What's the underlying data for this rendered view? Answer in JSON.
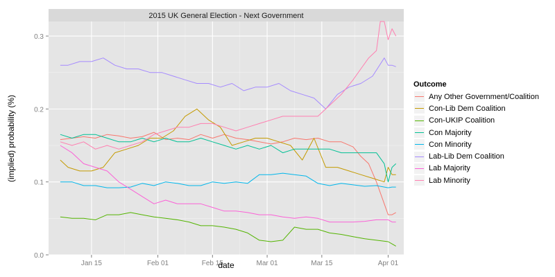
{
  "chart_data": {
    "type": "line",
    "title": "2015 UK General Election - Next Government",
    "xlabel": "date",
    "ylabel": "(implied) probability (%)",
    "legend_title": "Outcome",
    "legend_position": "right",
    "grid": true,
    "xlim": [
      "2015-01-04",
      "2015-04-05"
    ],
    "ylim": [
      0,
      0.32
    ],
    "x_ticks": [
      {
        "date": "2015-01-15",
        "label": "Jan 15"
      },
      {
        "date": "2015-02-01",
        "label": "Feb 01"
      },
      {
        "date": "2015-02-15",
        "label": "Feb 15"
      },
      {
        "date": "2015-03-01",
        "label": "Mar 01"
      },
      {
        "date": "2015-03-15",
        "label": "Mar 15"
      },
      {
        "date": "2015-04-01",
        "label": "Apr 01"
      }
    ],
    "y_ticks": [
      0.0,
      0.1,
      0.2,
      0.3
    ],
    "y_tick_labels": [
      "0.0",
      "0.1",
      "0.2",
      "0.3"
    ],
    "series": [
      {
        "name": "Any Other Government/Coalition",
        "color": "#F8766D",
        "x": [
          "2015-01-07",
          "2015-01-10",
          "2015-01-13",
          "2015-01-16",
          "2015-01-19",
          "2015-01-22",
          "2015-01-25",
          "2015-01-28",
          "2015-01-31",
          "2015-02-03",
          "2015-02-06",
          "2015-02-09",
          "2015-02-12",
          "2015-02-15",
          "2015-02-18",
          "2015-02-21",
          "2015-02-24",
          "2015-02-27",
          "2015-03-02",
          "2015-03-05",
          "2015-03-08",
          "2015-03-11",
          "2015-03-14",
          "2015-03-17",
          "2015-03-20",
          "2015-03-23",
          "2015-03-25",
          "2015-03-27",
          "2015-03-29",
          "2015-03-31",
          "2015-04-01",
          "2015-04-02",
          "2015-04-03"
        ],
        "y": [
          0.158,
          0.16,
          0.162,
          0.16,
          0.165,
          0.163,
          0.16,
          0.162,
          0.168,
          0.158,
          0.16,
          0.158,
          0.165,
          0.16,
          0.165,
          0.16,
          0.158,
          0.155,
          0.152,
          0.155,
          0.16,
          0.158,
          0.16,
          0.155,
          0.155,
          0.148,
          0.135,
          0.125,
          0.1,
          0.07,
          0.055,
          0.055,
          0.058
        ]
      },
      {
        "name": "Con-Lib Dem Coalition",
        "color": "#C49A00",
        "x": [
          "2015-01-07",
          "2015-01-09",
          "2015-01-12",
          "2015-01-15",
          "2015-01-18",
          "2015-01-21",
          "2015-01-24",
          "2015-01-27",
          "2015-01-30",
          "2015-02-02",
          "2015-02-05",
          "2015-02-08",
          "2015-02-11",
          "2015-02-14",
          "2015-02-17",
          "2015-02-20",
          "2015-02-23",
          "2015-02-26",
          "2015-03-01",
          "2015-03-04",
          "2015-03-07",
          "2015-03-10",
          "2015-03-13",
          "2015-03-16",
          "2015-03-19",
          "2015-03-22",
          "2015-03-25",
          "2015-03-28",
          "2015-03-31",
          "2015-04-01",
          "2015-04-02",
          "2015-04-03"
        ],
        "y": [
          0.13,
          0.12,
          0.115,
          0.115,
          0.12,
          0.14,
          0.145,
          0.15,
          0.16,
          0.16,
          0.17,
          0.19,
          0.2,
          0.185,
          0.175,
          0.15,
          0.155,
          0.16,
          0.16,
          0.155,
          0.15,
          0.13,
          0.16,
          0.12,
          0.12,
          0.115,
          0.11,
          0.105,
          0.1,
          0.12,
          0.11,
          0.11
        ]
      },
      {
        "name": "Con-UKIP Coalition",
        "color": "#53B400",
        "x": [
          "2015-01-07",
          "2015-01-10",
          "2015-01-13",
          "2015-01-16",
          "2015-01-19",
          "2015-01-22",
          "2015-01-25",
          "2015-01-28",
          "2015-01-31",
          "2015-02-03",
          "2015-02-06",
          "2015-02-09",
          "2015-02-12",
          "2015-02-15",
          "2015-02-18",
          "2015-02-21",
          "2015-02-24",
          "2015-02-27",
          "2015-03-02",
          "2015-03-05",
          "2015-03-08",
          "2015-03-11",
          "2015-03-14",
          "2015-03-17",
          "2015-03-20",
          "2015-03-23",
          "2015-03-26",
          "2015-03-29",
          "2015-04-01",
          "2015-04-02",
          "2015-04-03"
        ],
        "y": [
          0.052,
          0.05,
          0.05,
          0.048,
          0.055,
          0.055,
          0.058,
          0.055,
          0.052,
          0.05,
          0.048,
          0.045,
          0.04,
          0.04,
          0.038,
          0.035,
          0.03,
          0.02,
          0.018,
          0.02,
          0.038,
          0.035,
          0.035,
          0.03,
          0.028,
          0.025,
          0.022,
          0.02,
          0.018,
          0.015,
          0.012
        ]
      },
      {
        "name": "Con Majority",
        "color": "#00C094",
        "x": [
          "2015-01-07",
          "2015-01-10",
          "2015-01-13",
          "2015-01-16",
          "2015-01-19",
          "2015-01-22",
          "2015-01-25",
          "2015-01-28",
          "2015-01-31",
          "2015-02-03",
          "2015-02-06",
          "2015-02-09",
          "2015-02-12",
          "2015-02-15",
          "2015-02-18",
          "2015-02-21",
          "2015-02-24",
          "2015-02-27",
          "2015-03-02",
          "2015-03-05",
          "2015-03-08",
          "2015-03-11",
          "2015-03-14",
          "2015-03-17",
          "2015-03-20",
          "2015-03-23",
          "2015-03-26",
          "2015-03-29",
          "2015-03-31",
          "2015-04-01",
          "2015-04-02",
          "2015-04-03"
        ],
        "y": [
          0.165,
          0.16,
          0.165,
          0.165,
          0.16,
          0.155,
          0.155,
          0.16,
          0.155,
          0.16,
          0.155,
          0.155,
          0.16,
          0.155,
          0.15,
          0.145,
          0.15,
          0.145,
          0.15,
          0.14,
          0.145,
          0.145,
          0.145,
          0.145,
          0.14,
          0.14,
          0.14,
          0.14,
          0.125,
          0.1,
          0.12,
          0.125
        ]
      },
      {
        "name": "Con Minority",
        "color": "#00B6EB",
        "x": [
          "2015-01-07",
          "2015-01-10",
          "2015-01-13",
          "2015-01-16",
          "2015-01-19",
          "2015-01-22",
          "2015-01-25",
          "2015-01-28",
          "2015-01-31",
          "2015-02-03",
          "2015-02-06",
          "2015-02-09",
          "2015-02-12",
          "2015-02-15",
          "2015-02-18",
          "2015-02-21",
          "2015-02-24",
          "2015-02-27",
          "2015-03-02",
          "2015-03-05",
          "2015-03-08",
          "2015-03-11",
          "2015-03-14",
          "2015-03-17",
          "2015-03-20",
          "2015-03-23",
          "2015-03-26",
          "2015-03-29",
          "2015-04-01",
          "2015-04-02",
          "2015-04-03"
        ],
        "y": [
          0.1,
          0.1,
          0.095,
          0.095,
          0.092,
          0.092,
          0.093,
          0.098,
          0.095,
          0.1,
          0.098,
          0.095,
          0.095,
          0.1,
          0.098,
          0.1,
          0.098,
          0.11,
          0.11,
          0.112,
          0.11,
          0.108,
          0.098,
          0.095,
          0.098,
          0.096,
          0.094,
          0.095,
          0.092,
          0.093,
          0.093
        ]
      },
      {
        "name": "Lab-Lib Dem Coalition",
        "color": "#A58AFF",
        "x": [
          "2015-01-07",
          "2015-01-09",
          "2015-01-12",
          "2015-01-15",
          "2015-01-18",
          "2015-01-21",
          "2015-01-24",
          "2015-01-27",
          "2015-01-30",
          "2015-02-02",
          "2015-02-05",
          "2015-02-08",
          "2015-02-11",
          "2015-02-14",
          "2015-02-17",
          "2015-02-20",
          "2015-02-23",
          "2015-02-26",
          "2015-03-01",
          "2015-03-04",
          "2015-03-07",
          "2015-03-10",
          "2015-03-13",
          "2015-03-16",
          "2015-03-19",
          "2015-03-22",
          "2015-03-25",
          "2015-03-28",
          "2015-03-31",
          "2015-04-01",
          "2015-04-02",
          "2015-04-03"
        ],
        "y": [
          0.26,
          0.26,
          0.265,
          0.265,
          0.27,
          0.26,
          0.255,
          0.255,
          0.25,
          0.25,
          0.245,
          0.24,
          0.235,
          0.235,
          0.23,
          0.235,
          0.225,
          0.23,
          0.23,
          0.235,
          0.225,
          0.22,
          0.215,
          0.2,
          0.22,
          0.23,
          0.235,
          0.245,
          0.27,
          0.26,
          0.26,
          0.258
        ]
      },
      {
        "name": "Lab Majority",
        "color": "#FB61D7",
        "x": [
          "2015-01-07",
          "2015-01-10",
          "2015-01-13",
          "2015-01-16",
          "2015-01-19",
          "2015-01-22",
          "2015-01-25",
          "2015-01-28",
          "2015-01-31",
          "2015-02-03",
          "2015-02-06",
          "2015-02-09",
          "2015-02-12",
          "2015-02-15",
          "2015-02-18",
          "2015-02-21",
          "2015-02-24",
          "2015-02-27",
          "2015-03-02",
          "2015-03-05",
          "2015-03-08",
          "2015-03-11",
          "2015-03-14",
          "2015-03-17",
          "2015-03-20",
          "2015-03-23",
          "2015-03-26",
          "2015-03-29",
          "2015-04-01",
          "2015-04-02",
          "2015-04-03"
        ],
        "y": [
          0.15,
          0.14,
          0.125,
          0.12,
          0.115,
          0.1,
          0.09,
          0.08,
          0.07,
          0.075,
          0.07,
          0.07,
          0.07,
          0.065,
          0.06,
          0.06,
          0.058,
          0.055,
          0.055,
          0.052,
          0.05,
          0.052,
          0.05,
          0.045,
          0.045,
          0.045,
          0.046,
          0.048,
          0.048,
          0.045,
          0.045
        ]
      },
      {
        "name": "Lab Minority",
        "color": "#FF7FB0",
        "x": [
          "2015-01-07",
          "2015-01-10",
          "2015-01-13",
          "2015-01-16",
          "2015-01-19",
          "2015-01-22",
          "2015-01-25",
          "2015-01-28",
          "2015-01-31",
          "2015-02-03",
          "2015-02-06",
          "2015-02-09",
          "2015-02-12",
          "2015-02-15",
          "2015-02-18",
          "2015-02-21",
          "2015-02-24",
          "2015-02-27",
          "2015-03-02",
          "2015-03-05",
          "2015-03-08",
          "2015-03-11",
          "2015-03-14",
          "2015-03-17",
          "2015-03-20",
          "2015-03-23",
          "2015-03-25",
          "2015-03-27",
          "2015-03-29",
          "2015-03-30",
          "2015-03-31",
          "2015-04-01",
          "2015-04-02",
          "2015-04-03"
        ],
        "y": [
          0.155,
          0.15,
          0.155,
          0.145,
          0.15,
          0.145,
          0.15,
          0.155,
          0.165,
          0.17,
          0.175,
          0.175,
          0.18,
          0.18,
          0.175,
          0.17,
          0.175,
          0.18,
          0.185,
          0.19,
          0.19,
          0.19,
          0.19,
          0.205,
          0.22,
          0.24,
          0.255,
          0.27,
          0.28,
          0.32,
          0.32,
          0.295,
          0.31,
          0.3
        ]
      }
    ]
  }
}
